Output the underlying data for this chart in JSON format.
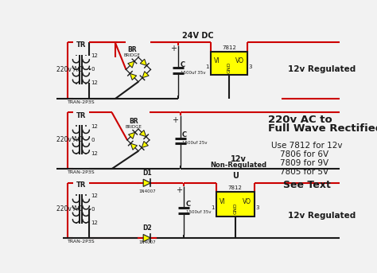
{
  "bg_color": "#f2f2f2",
  "R": "#cc0000",
  "K": "#1a1a1a",
  "Y": "#ffff00",
  "W": "#ffffff",
  "title1": "220v AC to",
  "title2": "Full Wave Rectified DC",
  "note1": "Use 7812 for 12v",
  "note2": "7806 for 6V",
  "note3": "7809 for 9V",
  "note4": "7805 for 5V",
  "note5": "See Text",
  "lw": 1.5
}
